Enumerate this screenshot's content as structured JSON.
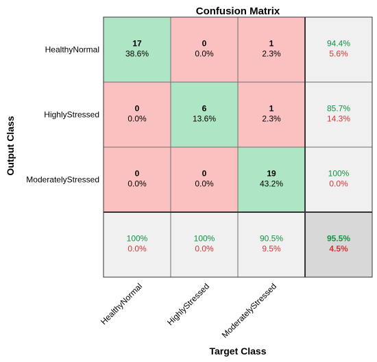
{
  "chart_data": {
    "type": "heatmap",
    "title": "Confusion Matrix",
    "xlabel": "Target Class",
    "ylabel": "Output Class",
    "classes": [
      "HealthyNormal",
      "HighlyStressed",
      "ModeratelyStressed"
    ],
    "counts": [
      [
        17,
        0,
        1
      ],
      [
        0,
        6,
        1
      ],
      [
        0,
        0,
        19
      ]
    ],
    "percentages": [
      [
        "38.6%",
        "0.0%",
        "2.3%"
      ],
      [
        "0.0%",
        "13.6%",
        "2.3%"
      ],
      [
        "0.0%",
        "0.0%",
        "43.2%"
      ]
    ],
    "row_summary": [
      {
        "correct": "94.4%",
        "incorrect": "5.6%"
      },
      {
        "correct": "85.7%",
        "incorrect": "14.3%"
      },
      {
        "correct": "100%",
        "incorrect": "0.0%"
      }
    ],
    "column_summary": [
      {
        "correct": "100%",
        "incorrect": "0.0%"
      },
      {
        "correct": "100%",
        "incorrect": "0.0%"
      },
      {
        "correct": "90.5%",
        "incorrect": "9.5%"
      }
    ],
    "overall": {
      "correct": "95.5%",
      "incorrect": "4.5%"
    },
    "colors": {
      "diagonal": "#ade5c5",
      "off_diagonal": "#fbc1c1",
      "summary": "#f0f0f0",
      "overall": "#d8d8d8",
      "correct_text": "#129344",
      "incorrect_text": "#d93434"
    }
  }
}
